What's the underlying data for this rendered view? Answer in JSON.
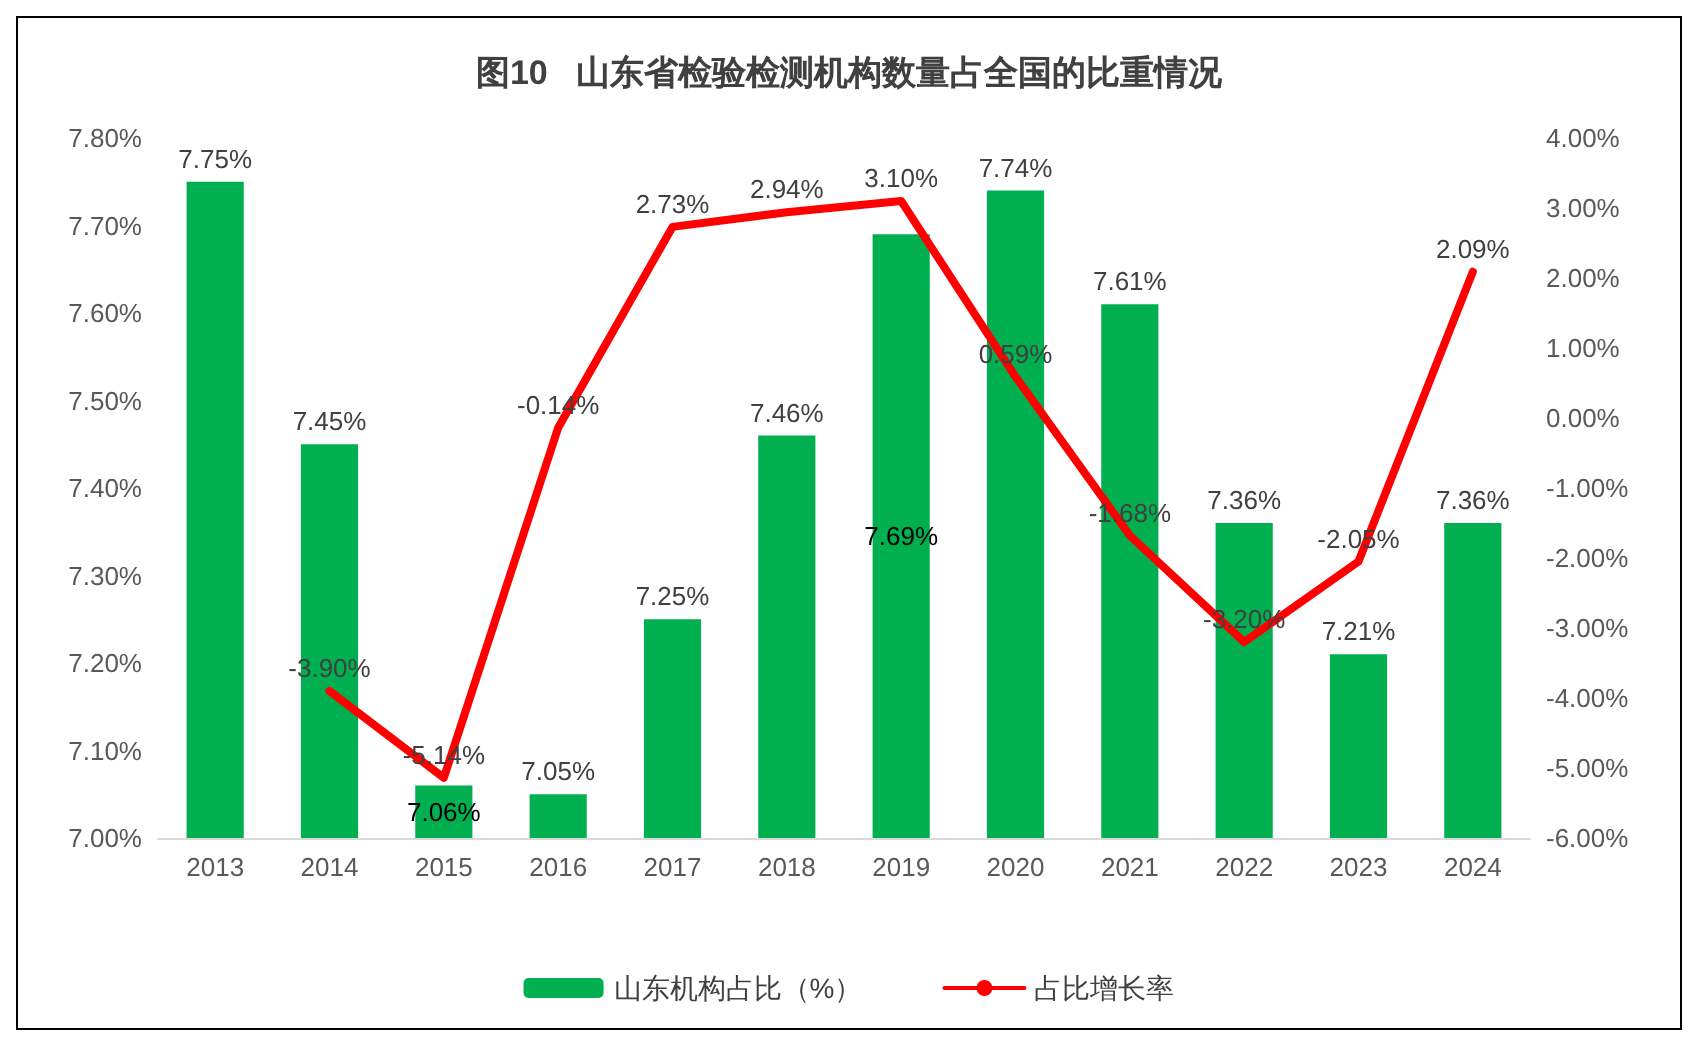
{
  "chart_data": {
    "type": "bar",
    "title": "图10   山东省检验检测机构数量占全国的比重情况",
    "categories": [
      "2013",
      "2014",
      "2015",
      "2016",
      "2017",
      "2018",
      "2019",
      "2020",
      "2021",
      "2022",
      "2023",
      "2024"
    ],
    "series": [
      {
        "name": "山东机构占比（%）",
        "color": "#00b050",
        "values": [
          7.75,
          7.45,
          7.06,
          7.05,
          7.25,
          7.46,
          7.69,
          7.74,
          7.61,
          7.36,
          7.21,
          7.36
        ],
        "value_labels": [
          "7.75%",
          "7.45%",
          "7.06%",
          "7.05%",
          "7.25%",
          "7.46%",
          "7.69%",
          "7.74%",
          "7.61%",
          "7.36%",
          "7.21%",
          "7.36%"
        ]
      },
      {
        "name": "占比增长率",
        "type": "line",
        "axis": "y2",
        "color": "#ff0000",
        "values": [
          null,
          -3.9,
          -5.14,
          -0.14,
          2.73,
          2.94,
          3.1,
          0.59,
          -1.68,
          -3.2,
          -2.05,
          2.09
        ],
        "value_labels": [
          null,
          "-3.90%",
          "-5.14%",
          "-0.14%",
          "2.73%",
          "2.94%",
          "3.10%",
          "0.59%",
          "-1.68%",
          "-3.20%",
          "-2.05%",
          "2.09%"
        ]
      }
    ],
    "ylim": [
      7.0,
      7.8
    ],
    "yticks": [
      {
        "value": 7.0,
        "label": "7.00%"
      },
      {
        "value": 7.1,
        "label": "7.10%"
      },
      {
        "value": 7.2,
        "label": "7.20%"
      },
      {
        "value": 7.3,
        "label": "7.30%"
      },
      {
        "value": 7.4,
        "label": "7.40%"
      },
      {
        "value": 7.5,
        "label": "7.50%"
      },
      {
        "value": 7.6,
        "label": "7.60%"
      },
      {
        "value": 7.7,
        "label": "7.70%"
      },
      {
        "value": 7.8,
        "label": "7.80%"
      }
    ],
    "y2lim": [
      -6,
      4
    ],
    "y2ticks": [
      {
        "value": -6,
        "label": "-6.00%"
      },
      {
        "value": -5,
        "label": "-5.00%"
      },
      {
        "value": -4,
        "label": "-4.00%"
      },
      {
        "value": -3,
        "label": "-3.00%"
      },
      {
        "value": -2,
        "label": "-2.00%"
      },
      {
        "value": -1,
        "label": "-1.00%"
      },
      {
        "value": 0,
        "label": "0.00%"
      },
      {
        "value": 1,
        "label": "1.00%"
      },
      {
        "value": 2,
        "label": "2.00%"
      },
      {
        "value": 3,
        "label": "3.00%"
      },
      {
        "value": 4,
        "label": "4.00%"
      }
    ],
    "legend": "bottom",
    "marker": "none",
    "line_style": "solid"
  }
}
